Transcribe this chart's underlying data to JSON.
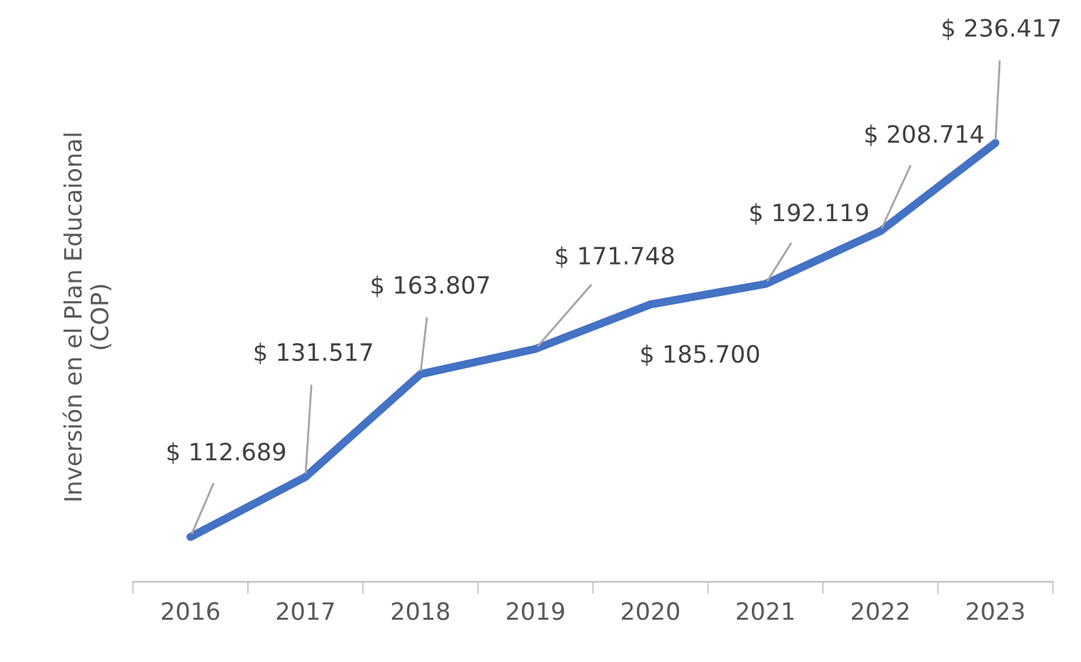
{
  "chart_data": {
    "type": "line",
    "ylabel": "Inversión en el Plan Educaional\n(COP)",
    "categories": [
      "2016",
      "2017",
      "2018",
      "2019",
      "2020",
      "2021",
      "2022",
      "2023"
    ],
    "values": [
      112689,
      131517,
      163807,
      171748,
      185700,
      192119,
      208714,
      236417
    ],
    "value_labels": [
      "$ 112.689",
      "$ 131.517",
      "$ 163.807",
      "$ 171.748",
      "$ 185.700",
      "$ 192.119",
      "$ 208.714",
      "$ 236.417"
    ],
    "color": "#4472c4"
  }
}
